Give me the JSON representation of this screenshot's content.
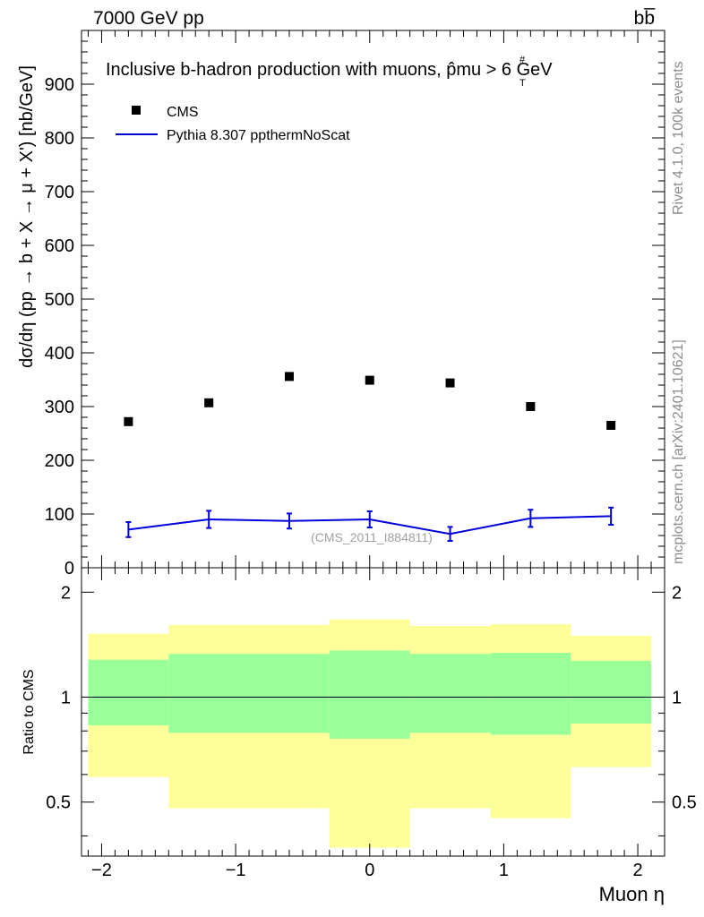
{
  "header": {
    "energy_label": "7000 GeV pp",
    "process_label": "bb̅",
    "rivet_label": "Rivet 4.1.0,  100k events",
    "mcplots_label": "mcplots.cern.ch [arXiv:2401.10621]"
  },
  "chart_data": [
    {
      "type": "scatter",
      "title": "Inclusive b-hadron production with muons, p̂mu > 6 GeV",
      "title_superscript": "#",
      "title_subscript": "T",
      "ylabel": "dσ/dη (pp → b + X → μ + X') [nb/GeV]",
      "xlabel": "",
      "ylim": [
        0,
        1000
      ],
      "xlim": [
        -2.15,
        2.2
      ],
      "y_ticks": [
        "0",
        "100",
        "200",
        "300",
        "400",
        "500",
        "600",
        "700",
        "800",
        "900"
      ],
      "y_tick_values": [
        0,
        100,
        200,
        300,
        400,
        500,
        600,
        700,
        800,
        900
      ],
      "watermark": "(CMS_2011_I884811)",
      "legend": [
        {
          "label": "CMS",
          "marker": "square",
          "color": "#000000"
        },
        {
          "label": "Pythia 8.307 ppthermNoScat",
          "marker": "line",
          "color": "#0000dd"
        }
      ],
      "series": [
        {
          "name": "CMS",
          "x": [
            -1.8,
            -1.2,
            -0.6,
            0.0,
            0.6,
            1.2,
            1.8
          ],
          "values": [
            272,
            307,
            356,
            349,
            344,
            300,
            265
          ]
        },
        {
          "name": "Pythia 8.307 ppthermNoScat",
          "x": [
            -1.8,
            -1.2,
            -0.6,
            0.0,
            0.6,
            1.2,
            1.8
          ],
          "values": [
            71,
            90,
            87,
            90,
            63,
            92,
            96
          ],
          "errors": [
            14,
            16,
            14,
            15,
            13,
            16,
            16
          ]
        }
      ]
    },
    {
      "type": "area",
      "title": "",
      "ylabel": "Ratio to CMS",
      "xlabel": "Muon η",
      "ylim": [
        0.35,
        2.35
      ],
      "y_ticks": [
        "0.5",
        "1",
        "2"
      ],
      "y_tick_values": [
        0.5,
        1,
        2
      ],
      "x_ticks": [
        "−2",
        "−1",
        "0",
        "1",
        "2"
      ],
      "x_tick_values": [
        -2,
        -1,
        0,
        1,
        2
      ],
      "reference_line": 1.0,
      "bins": [
        {
          "low": -2.1,
          "high": -1.5,
          "inner": [
            0.83,
            1.28
          ],
          "outer": [
            0.59,
            1.52
          ]
        },
        {
          "low": -1.5,
          "high": -0.3,
          "inner": [
            0.79,
            1.33
          ],
          "outer": [
            0.48,
            1.61
          ]
        },
        {
          "low": -0.3,
          "high": 0.3,
          "inner": [
            0.76,
            1.36
          ],
          "outer": [
            0.37,
            1.67
          ]
        },
        {
          "low": 0.3,
          "high": 0.9,
          "inner": [
            0.79,
            1.33
          ],
          "outer": [
            0.48,
            1.6
          ]
        },
        {
          "low": 0.9,
          "high": 1.5,
          "inner": [
            0.78,
            1.34
          ],
          "outer": [
            0.45,
            1.62
          ]
        },
        {
          "low": 1.5,
          "high": 2.1,
          "inner": [
            0.84,
            1.27
          ],
          "outer": [
            0.63,
            1.5
          ]
        }
      ],
      "band_colors": {
        "inner": "#99ff99",
        "outer": "#ffff99"
      }
    }
  ]
}
